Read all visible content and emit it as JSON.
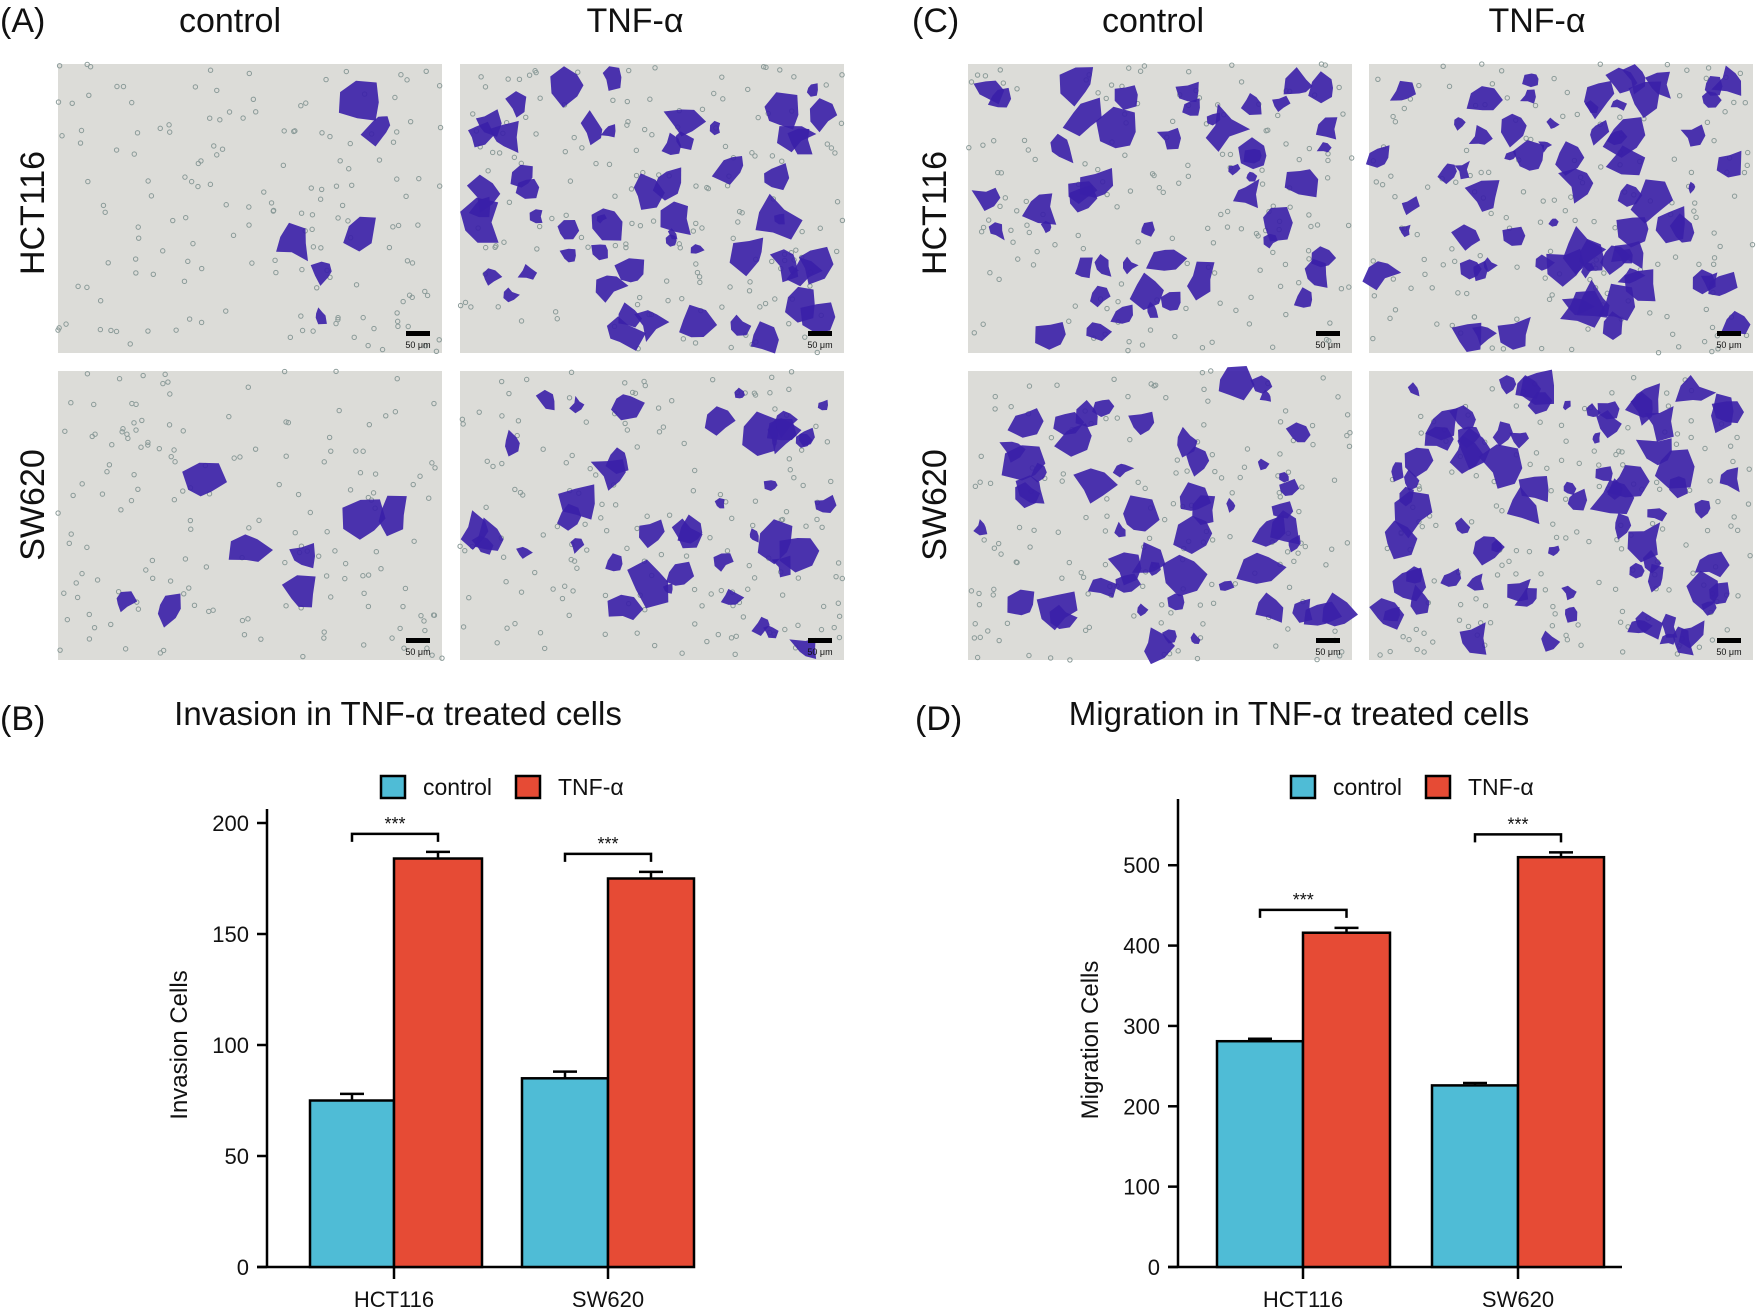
{
  "panels": {
    "A": {
      "label": "(A)",
      "col_labels": [
        "control",
        "TNF-α"
      ],
      "row_labels": [
        "HCT116",
        "SW620"
      ],
      "scale_bar": "50 μm",
      "density": [
        [
          0.08,
          0.8
        ],
        [
          0.12,
          0.6
        ]
      ]
    },
    "C": {
      "label": "(C)",
      "col_labels": [
        "control",
        "TNF-α"
      ],
      "row_labels": [
        "HCT116",
        "SW620"
      ],
      "scale_bar": "50 μm",
      "density": [
        [
          0.7,
          1.0
        ],
        [
          0.75,
          1.1
        ]
      ]
    },
    "B": {
      "label": "(B)"
    },
    "D": {
      "label": "(D)"
    }
  },
  "colors": {
    "control": "#4fbcd6",
    "TNF": "#e64b35",
    "stain": "#3a1fa8"
  },
  "chart_data": [
    {
      "type": "bar",
      "title": "Invasion in TNF-α treated cells",
      "xlabel": "",
      "ylabel": "Invasion Cells",
      "categories": [
        "HCT116",
        "SW620"
      ],
      "ylim": [
        0,
        200
      ],
      "yticks": [
        0,
        50,
        100,
        150,
        200
      ],
      "grid": false,
      "legend": "top-center",
      "series": [
        {
          "name": "control",
          "values": [
            75,
            85
          ],
          "errors": [
            3,
            3
          ]
        },
        {
          "name": "TNF-α",
          "values": [
            184,
            175
          ],
          "errors": [
            3,
            3
          ]
        }
      ],
      "annotations": [
        "***",
        "***"
      ]
    },
    {
      "type": "bar",
      "title": "Migration in TNF-α treated cells",
      "xlabel": "",
      "ylabel": "Migration Cells",
      "categories": [
        "HCT116",
        "SW620"
      ],
      "ylim": [
        0,
        565
      ],
      "yticks": [
        0,
        100,
        200,
        300,
        400,
        500
      ],
      "grid": false,
      "legend": "top-center",
      "series": [
        {
          "name": "control",
          "values": [
            281,
            226
          ],
          "errors": [
            3,
            3
          ]
        },
        {
          "name": "TNF-α",
          "values": [
            416,
            510
          ],
          "errors": [
            6,
            6
          ]
        }
      ],
      "annotations": [
        "***",
        "***"
      ]
    }
  ]
}
